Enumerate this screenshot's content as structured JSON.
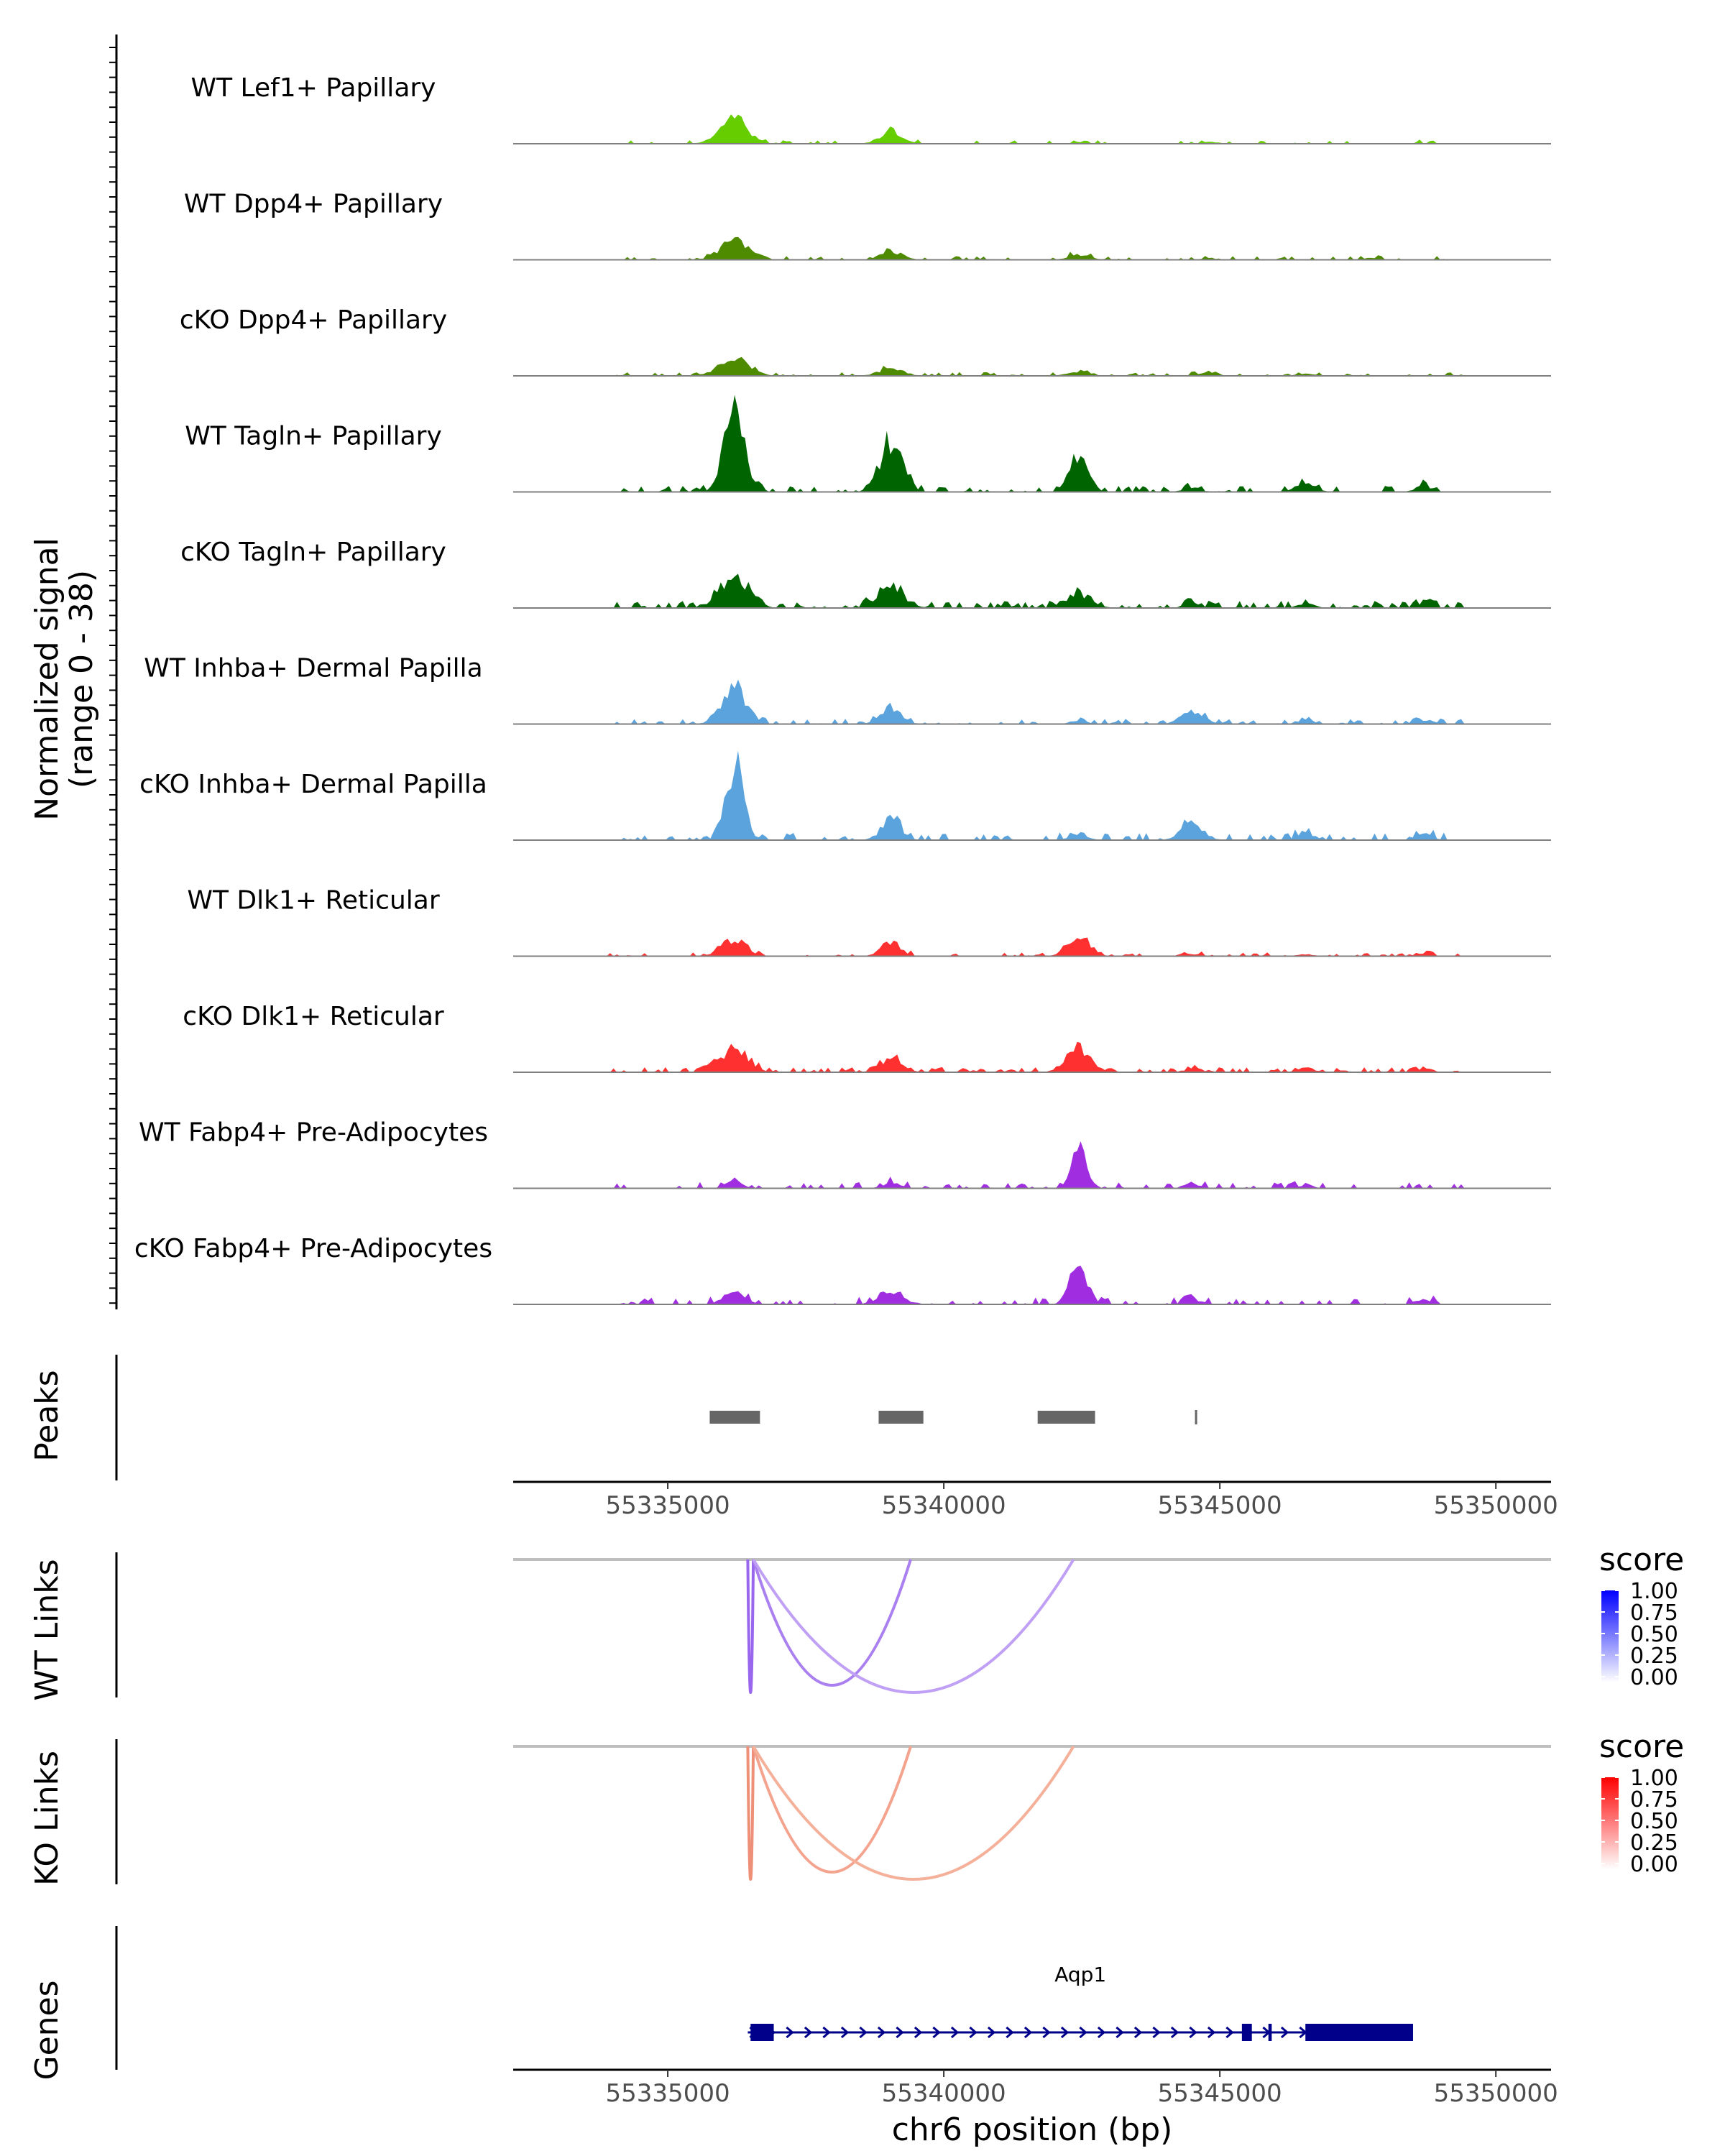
{
  "chart_data": {
    "type": "area",
    "title": "",
    "region": {
      "chromosome": "chr6",
      "start": 55332200,
      "end": 55351000
    },
    "coverage": {
      "ylabel_line1": "Normalized signal",
      "ylabel_line2": "(range 0 - 38)",
      "ylim": [
        0,
        38
      ],
      "peak_positions": [
        55336200,
        55339050,
        55342450,
        55344500,
        55346550,
        55348700
      ],
      "tracks": [
        {
          "name": "WT Lef1+ Papillary",
          "color": "#66cd00",
          "seed": 11,
          "noise_density": 0.22,
          "noise_max": 1.2,
          "peaks": [
            [
              55336200,
              8.5,
              250
            ],
            [
              55339050,
              4.5,
              200
            ],
            [
              55342450,
              0.6,
              150
            ],
            [
              55344800,
              0.8,
              150
            ],
            [
              55348700,
              0.3,
              150
            ]
          ]
        },
        {
          "name": "WT Dpp4+ Papillary",
          "color": "#4f8b00",
          "seed": 23,
          "noise_density": 0.3,
          "noise_max": 1.4,
          "peaks": [
            [
              55336200,
              6.5,
              250
            ],
            [
              55339050,
              3.0,
              200
            ],
            [
              55342450,
              1.8,
              200
            ],
            [
              55344800,
              0.6,
              150
            ],
            [
              55347700,
              0.6,
              150
            ]
          ]
        },
        {
          "name": "cKO Dpp4+ Papillary",
          "color": "#4f8b00",
          "seed": 37,
          "noise_density": 0.3,
          "noise_max": 1.3,
          "peaks": [
            [
              55336200,
              6.0,
              270
            ],
            [
              55339050,
              2.5,
              220
            ],
            [
              55342450,
              1.5,
              200
            ],
            [
              55344800,
              1.6,
              150
            ],
            [
              55346550,
              0.9,
              150
            ]
          ]
        },
        {
          "name": "WT Tagln+ Papillary",
          "color": "#006400",
          "seed": 41,
          "noise_density": 0.4,
          "noise_max": 2.2,
          "peaks": [
            [
              55336200,
              27,
              180
            ],
            [
              55339050,
              18,
              200
            ],
            [
              55342450,
              11,
              170
            ],
            [
              55344500,
              1.5,
              150
            ],
            [
              55346550,
              3.0,
              170
            ],
            [
              55348700,
              2.0,
              150
            ]
          ]
        },
        {
          "name": "cKO Tagln+ Papillary",
          "color": "#006400",
          "seed": 53,
          "noise_density": 0.45,
          "noise_max": 2.5,
          "peaks": [
            [
              55336200,
              9.5,
              270
            ],
            [
              55339050,
              6.5,
              250
            ],
            [
              55342450,
              5.0,
              220
            ],
            [
              55344500,
              1.5,
              150
            ],
            [
              55346550,
              1.5,
              150
            ],
            [
              55348700,
              1.5,
              150
            ]
          ]
        },
        {
          "name": "WT Inhba+ Dermal Papilla",
          "color": "#5ba3dd",
          "seed": 67,
          "noise_density": 0.35,
          "noise_max": 1.8,
          "peaks": [
            [
              55336200,
              13,
              220
            ],
            [
              55339050,
              6.0,
              180
            ],
            [
              55342450,
              1.2,
              150
            ],
            [
              55344500,
              4.5,
              200
            ],
            [
              55346550,
              1.5,
              150
            ],
            [
              55348700,
              1.5,
              150
            ]
          ]
        },
        {
          "name": "cKO Inhba+ Dermal Papilla",
          "color": "#5ba3dd",
          "seed": 79,
          "noise_density": 0.35,
          "noise_max": 2.5,
          "peaks": [
            [
              55336200,
              26,
              160
            ],
            [
              55339050,
              7.0,
              180
            ],
            [
              55342450,
              2.5,
              150
            ],
            [
              55344500,
              6.0,
              200
            ],
            [
              55346550,
              2.5,
              150
            ],
            [
              55348700,
              2.0,
              150
            ]
          ]
        },
        {
          "name": "WT Dlk1+ Reticular",
          "color": "#ff3030",
          "seed": 83,
          "noise_density": 0.4,
          "noise_max": 1.3,
          "peaks": [
            [
              55336200,
              5.5,
              220
            ],
            [
              55339050,
              4.5,
              180
            ],
            [
              55342450,
              7.0,
              200
            ],
            [
              55344500,
              0.8,
              150
            ],
            [
              55346550,
              0.6,
              150
            ],
            [
              55348700,
              0.8,
              150
            ]
          ]
        },
        {
          "name": "cKO Dlk1+ Reticular",
          "color": "#ff3030",
          "seed": 97,
          "noise_density": 0.45,
          "noise_max": 1.8,
          "peaks": [
            [
              55336200,
              8.0,
              250
            ],
            [
              55339050,
              4.0,
              200
            ],
            [
              55342450,
              8.0,
              220
            ],
            [
              55344500,
              1.2,
              150
            ],
            [
              55346550,
              1.6,
              150
            ],
            [
              55348700,
              0.8,
              150
            ]
          ]
        },
        {
          "name": "WT Fabp4+ Pre-Adipocytes",
          "color": "#a02ee0",
          "seed": 101,
          "noise_density": 0.3,
          "noise_max": 2.2,
          "peaks": [
            [
              55336200,
              2.5,
              150
            ],
            [
              55339050,
              2.0,
              150
            ],
            [
              55342450,
              14,
              140
            ],
            [
              55344500,
              1.5,
              150
            ],
            [
              55346550,
              0.8,
              150
            ]
          ]
        },
        {
          "name": "cKO Fabp4+ Pre-Adipocytes",
          "color": "#a02ee0",
          "seed": 113,
          "noise_density": 0.3,
          "noise_max": 2.5,
          "peaks": [
            [
              55336200,
              4.0,
              200
            ],
            [
              55339050,
              4.0,
              230
            ],
            [
              55342450,
              13,
              160
            ],
            [
              55344500,
              2.0,
              150
            ],
            [
              55348700,
              1.5,
              150
            ]
          ]
        }
      ]
    },
    "peaks_track": {
      "label": "Peaks",
      "color": "#666666",
      "regions": [
        [
          55335760,
          55336670
        ],
        [
          55338820,
          55339630
        ],
        [
          55341700,
          55342740
        ],
        [
          55344550,
          55344600
        ]
      ]
    },
    "x_axis": {
      "ticks": [
        55335000,
        55340000,
        55345000,
        55350000
      ],
      "tick_labels": [
        "55335000",
        "55340000",
        "55345000",
        "55350000"
      ],
      "xlabel": "chr6 position (bp)"
    },
    "links": [
      {
        "label": "WT Links",
        "baseline_color": "#bebebe",
        "legend": {
          "title": "score",
          "color_high": "#0000ff",
          "color_low": "#ffffff",
          "ticks": [
            "1.00",
            "0.75",
            "0.50",
            "0.25",
            "0.00"
          ]
        },
        "arcs": [
          {
            "start": 55336450,
            "end": 55336550,
            "score": 0.55,
            "color": "#9966ee"
          },
          {
            "start": 55336550,
            "end": 55339400,
            "score": 0.45,
            "color": "#aa80f0"
          },
          {
            "start": 55336550,
            "end": 55342350,
            "score": 0.35,
            "color": "#c0a0f4"
          }
        ]
      },
      {
        "label": "KO Links",
        "baseline_color": "#bebebe",
        "legend": {
          "title": "score",
          "color_high": "#ff0000",
          "color_low": "#ffffff",
          "ticks": [
            "1.00",
            "0.75",
            "0.50",
            "0.25",
            "0.00"
          ]
        },
        "arcs": [
          {
            "start": 55336450,
            "end": 55336550,
            "score": 0.55,
            "color": "#ee8f78"
          },
          {
            "start": 55336550,
            "end": 55339400,
            "score": 0.45,
            "color": "#f4a48e"
          },
          {
            "start": 55336550,
            "end": 55342350,
            "score": 0.35,
            "color": "#f5b09a"
          }
        ]
      }
    ],
    "genes": {
      "label": "Genes",
      "color": "#00008b",
      "items": [
        {
          "name": "Aqp1",
          "start": 55336450,
          "end": 55348500,
          "strand": "+",
          "exons": [
            [
              55336500,
              55336920
            ],
            [
              55345400,
              55345580
            ],
            [
              55345880,
              55345940
            ],
            [
              55346550,
              55348500
            ]
          ]
        }
      ]
    }
  }
}
